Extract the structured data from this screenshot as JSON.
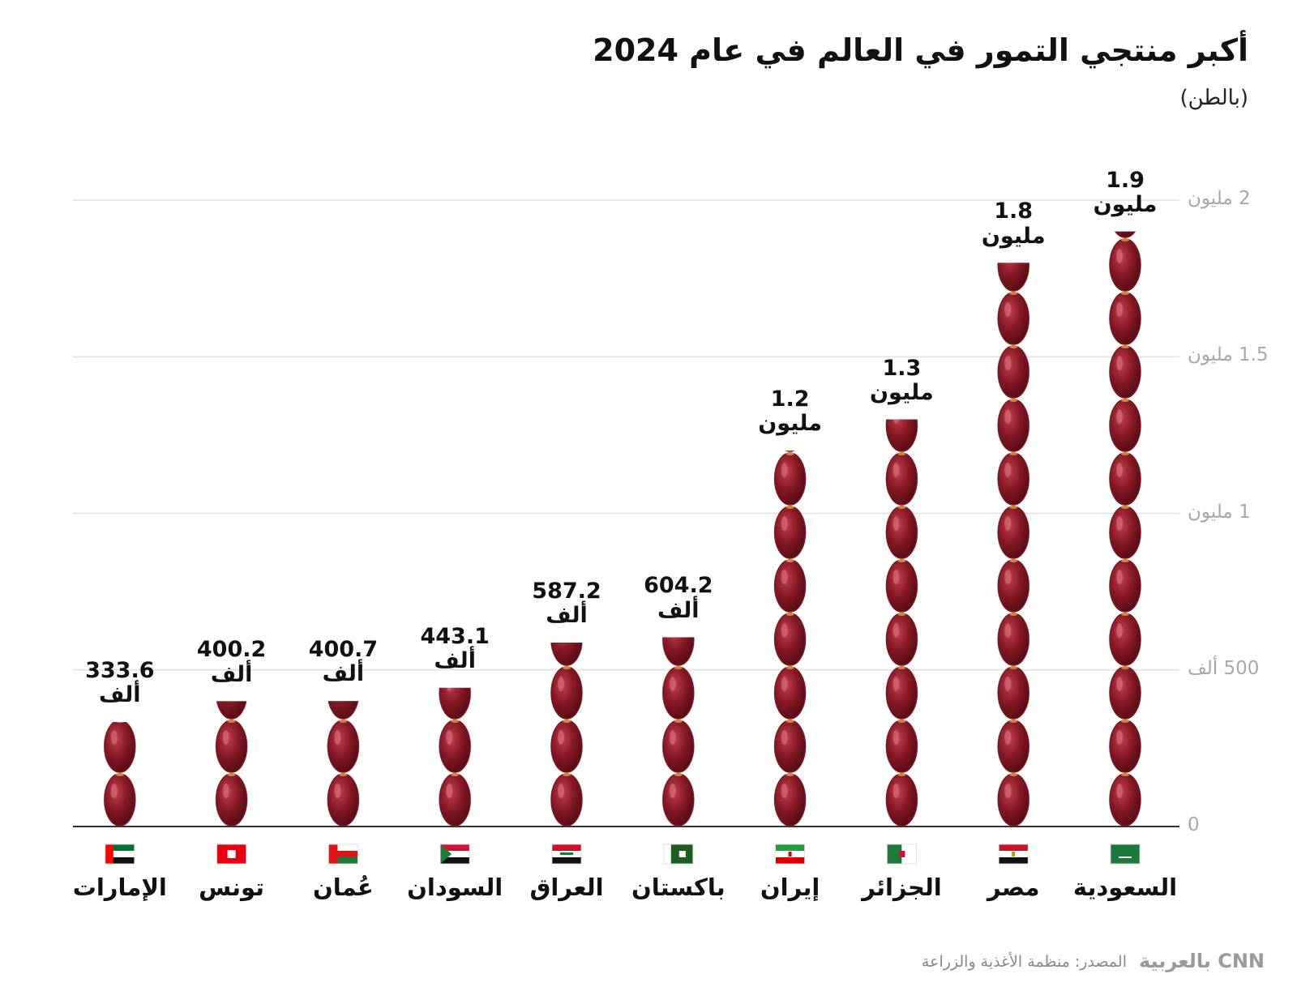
{
  "chart_data": {
    "type": "bar",
    "title": "أكبر منتجي التمور في العالم في عام 2024",
    "subtitle": "(بالطن)",
    "categories": [
      "السعودية",
      "مصر",
      "الجزائر",
      "إيران",
      "باكستان",
      "العراق",
      "السودان",
      "عُمان",
      "تونس",
      "الإمارات"
    ],
    "values": [
      1900000,
      1800000,
      1300000,
      1200000,
      604200,
      587200,
      443100,
      400700,
      400200,
      333600
    ],
    "value_labels": [
      "1.9 مليون",
      "1.8 مليون",
      "1.3 مليون",
      "1.2 مليون",
      "604.2 ألف",
      "587.2 ألف",
      "443.1 ألف",
      "400.7 ألف",
      "400.2 ألف",
      "333.6 ألف"
    ],
    "color": "#7a1420",
    "ylim": [
      0,
      2000000
    ],
    "yticks": [
      0,
      {
        "value": 500000,
        "label": "500 ألف"
      },
      {
        "value": 1000000,
        "label": "1 مليون"
      },
      {
        "value": 1500000,
        "label": "1.5 مليون"
      },
      {
        "value": 2000000,
        "label": "2 مليون"
      }
    ],
    "grid": true,
    "source": "المصدر: منظمة الأغذية والزراعة",
    "logo": "CNN بالعربية"
  }
}
